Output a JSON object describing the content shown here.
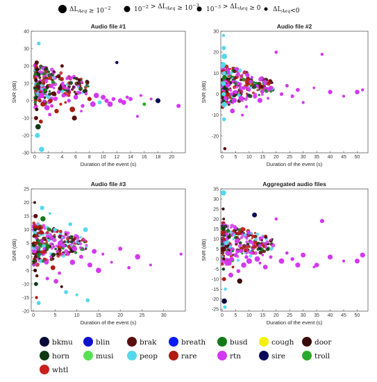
{
  "size_legend": [
    {
      "label": "ΔL_Aeq ≥ 10^-2",
      "marker_radius_px": 6
    },
    {
      "label": "10^-2 > ΔL_Aeq ≥ 10^-3",
      "marker_radius_px": 4.5
    },
    {
      "label": "10^-3 > ΔL_Aeq ≥ 0",
      "marker_radius_px": 3.5
    },
    {
      "label": "ΔL_Aeq <0",
      "marker_radius_px": 2.5
    }
  ],
  "categories": [
    {
      "name": "bkmu",
      "color": "#0a0a3a"
    },
    {
      "name": "blin",
      "color": "#1010d0"
    },
    {
      "name": "brak",
      "color": "#5a0f0f"
    },
    {
      "name": "breath",
      "color": "#0a1aff"
    },
    {
      "name": "busd",
      "color": "#127a18"
    },
    {
      "name": "cough",
      "color": "#f2f200"
    },
    {
      "name": "door",
      "color": "#3a0a0a"
    },
    {
      "name": "horn",
      "color": "#0f3a12"
    },
    {
      "name": "musi",
      "color": "#55e055"
    },
    {
      "name": "peop",
      "color": "#55d8ee"
    },
    {
      "name": "rare",
      "color": "#b01a10"
    },
    {
      "name": "rtn",
      "color": "#d438f0"
    },
    {
      "name": "sire",
      "color": "#0a0a5a"
    },
    {
      "name": "troll",
      "color": "#2aaa2a"
    },
    {
      "name": "whtl",
      "color": "#c8201a"
    }
  ],
  "chart_data": [
    {
      "type": "scatter",
      "title": "Audio file #1",
      "xlabel": "Duration of the event (s)",
      "ylabel": "SNR (dB)",
      "xlim": [
        -0.5,
        22
      ],
      "ylim": [
        -30,
        40
      ],
      "xticks": [
        0,
        2,
        4,
        6,
        8,
        10,
        12,
        14,
        16,
        18,
        20
      ],
      "yticks": [
        -30,
        -20,
        -10,
        0,
        10,
        20,
        30,
        40
      ],
      "points": [
        [
          0.3,
          22,
          "brak"
        ],
        [
          0.4,
          18,
          "door"
        ],
        [
          0.6,
          15,
          "horn"
        ],
        [
          0.5,
          8,
          "brak"
        ],
        [
          0.8,
          5,
          "rare"
        ],
        [
          0.3,
          -5,
          "door"
        ],
        [
          0.2,
          -10,
          "brak"
        ],
        [
          0.5,
          -15,
          "horn"
        ],
        [
          0.4,
          -20,
          "peop"
        ],
        [
          0.7,
          0,
          "rare"
        ],
        [
          1.0,
          3,
          "rtn"
        ],
        [
          1.2,
          -2,
          "rare"
        ],
        [
          1.5,
          6,
          "busd"
        ],
        [
          1.8,
          -4,
          "rtn"
        ],
        [
          2.0,
          2,
          "peop"
        ],
        [
          2.3,
          0,
          "rare"
        ],
        [
          2.5,
          -3,
          "rtn"
        ],
        [
          2.8,
          4,
          "brak"
        ],
        [
          3.0,
          1,
          "rtn"
        ],
        [
          3.2,
          -6,
          "rare"
        ],
        [
          3.5,
          5,
          "rtn"
        ],
        [
          3.8,
          -2,
          "whtl"
        ],
        [
          4.0,
          20,
          "brak"
        ],
        [
          4.2,
          3,
          "rtn"
        ],
        [
          4.5,
          -1,
          "rare"
        ],
        [
          4.8,
          7,
          "rtn"
        ],
        [
          5.0,
          0,
          "rtn"
        ],
        [
          5.5,
          -5,
          "rare"
        ],
        [
          6.0,
          2,
          "rtn"
        ],
        [
          6.5,
          12,
          "brak"
        ],
        [
          7.0,
          -3,
          "rtn"
        ],
        [
          7.5,
          4,
          "rtn"
        ],
        [
          8.0,
          1,
          "rare"
        ],
        [
          8.5,
          -2,
          "rtn"
        ],
        [
          9.0,
          3,
          "rtn"
        ],
        [
          9.5,
          -1,
          "peop"
        ],
        [
          10.0,
          2,
          "rtn"
        ],
        [
          10.5,
          0,
          "rtn"
        ],
        [
          11.0,
          -2,
          "rtn"
        ],
        [
          11.5,
          1,
          "rtn"
        ],
        [
          12.0,
          22,
          "sire"
        ],
        [
          12.5,
          0,
          "rtn"
        ],
        [
          13.0,
          -1,
          "rtn"
        ],
        [
          13.5,
          2,
          "rtn"
        ],
        [
          14.0,
          1,
          "rtn"
        ],
        [
          15.0,
          -9,
          "rtn"
        ],
        [
          15.5,
          3,
          "rtn"
        ],
        [
          16.0,
          -2,
          "troll"
        ],
        [
          17.0,
          1,
          "rtn"
        ],
        [
          18.0,
          0,
          "sire"
        ],
        [
          21.0,
          -3,
          "rtn"
        ],
        [
          0.6,
          33,
          "peop"
        ],
        [
          1.0,
          -28,
          "peop"
        ],
        [
          0.9,
          -12,
          "rare"
        ],
        [
          1.3,
          10,
          "rare"
        ],
        [
          2.2,
          -8,
          "rtn"
        ],
        [
          2.6,
          9,
          "rtn"
        ],
        [
          0.2,
          12,
          "door"
        ],
        [
          0.3,
          2,
          "horn"
        ],
        [
          5.8,
          -10,
          "brak"
        ],
        [
          6.8,
          -6,
          "rtn"
        ]
      ]
    },
    {
      "type": "scatter",
      "title": "Audio file #2",
      "xlabel": "Duration of the event (s)",
      "ylabel": "SNR (dB)",
      "xlim": [
        -0.5,
        54
      ],
      "ylim": [
        -28,
        30
      ],
      "xticks": [
        0,
        5,
        10,
        15,
        20,
        25,
        30,
        35,
        40,
        45,
        50
      ],
      "yticks": [
        -20,
        -10,
        0,
        10,
        20,
        30
      ],
      "points": [
        [
          0.5,
          28,
          "peop"
        ],
        [
          0.6,
          22,
          "peop"
        ],
        [
          0.8,
          18,
          "peop"
        ],
        [
          0.4,
          14,
          "peop"
        ],
        [
          0.7,
          10,
          "peop"
        ],
        [
          0.5,
          5,
          "peop"
        ],
        [
          0.6,
          0,
          "peop"
        ],
        [
          0.8,
          -5,
          "peop"
        ],
        [
          0.7,
          -12,
          "peop"
        ],
        [
          1.0,
          -26,
          "brak"
        ],
        [
          0.9,
          8,
          "busd"
        ],
        [
          1.2,
          3,
          "horn"
        ],
        [
          1.5,
          -2,
          "rtn"
        ],
        [
          2.0,
          4,
          "rtn"
        ],
        [
          2.5,
          -4,
          "rtn"
        ],
        [
          3.0,
          2,
          "rtn"
        ],
        [
          3.5,
          0,
          "rtn"
        ],
        [
          4.0,
          6,
          "rtn"
        ],
        [
          4.5,
          -3,
          "rtn"
        ],
        [
          5.0,
          1,
          "rtn"
        ],
        [
          6.0,
          5,
          "rtn"
        ],
        [
          7.0,
          -2,
          "rtn"
        ],
        [
          8.0,
          3,
          "rtn"
        ],
        [
          9.0,
          -6,
          "rtn"
        ],
        [
          10.0,
          2,
          "rtn"
        ],
        [
          11.0,
          8,
          "rtn"
        ],
        [
          12.0,
          -1,
          "rtn"
        ],
        [
          13.0,
          4,
          "rtn"
        ],
        [
          14.0,
          -3,
          "rtn"
        ],
        [
          15.0,
          1,
          "rtn"
        ],
        [
          16.0,
          6,
          "rtn"
        ],
        [
          17.0,
          -2,
          "rtn"
        ],
        [
          18.0,
          3,
          "rtn"
        ],
        [
          20.0,
          20,
          "rtn"
        ],
        [
          22.0,
          0,
          "rtn"
        ],
        [
          24.0,
          4,
          "rtn"
        ],
        [
          26.0,
          -1,
          "rtn"
        ],
        [
          28.0,
          2,
          "rtn"
        ],
        [
          30.0,
          -4,
          "rtn"
        ],
        [
          34.0,
          3,
          "rtn"
        ],
        [
          37.0,
          19,
          "rtn"
        ],
        [
          40.0,
          1,
          "rtn"
        ],
        [
          45.0,
          -1,
          "rtn"
        ],
        [
          50.0,
          1,
          "rtn"
        ],
        [
          52.0,
          2,
          "rtn"
        ],
        [
          2.2,
          10,
          "rtn"
        ],
        [
          3.8,
          -8,
          "rtn"
        ],
        [
          5.5,
          12,
          "rtn"
        ],
        [
          7.5,
          -10,
          "rtn"
        ],
        [
          9.5,
          9,
          "rtn"
        ]
      ]
    },
    {
      "type": "scatter",
      "title": "Audio file #3",
      "xlabel": "Duration of the event (s)",
      "ylabel": "SNR (dB)",
      "xlim": [
        -0.5,
        35
      ],
      "ylim": [
        -20,
        25
      ],
      "xticks": [
        0,
        5,
        10,
        15,
        20,
        25,
        30
      ],
      "yticks": [
        -20,
        -15,
        -10,
        -5,
        0,
        5,
        10,
        15,
        20,
        25
      ],
      "points": [
        [
          0.3,
          20,
          "door"
        ],
        [
          0.5,
          15,
          "brak"
        ],
        [
          0.4,
          10,
          "horn"
        ],
        [
          0.6,
          5,
          "rare"
        ],
        [
          0.5,
          0,
          "brak"
        ],
        [
          0.4,
          -5,
          "door"
        ],
        [
          0.6,
          -10,
          "horn"
        ],
        [
          0.7,
          -15,
          "rare"
        ],
        [
          1.0,
          12,
          "peop"
        ],
        [
          1.5,
          8,
          "peop"
        ],
        [
          2.0,
          18,
          "peop"
        ],
        [
          2.5,
          3,
          "rtn"
        ],
        [
          3.0,
          -2,
          "rtn"
        ],
        [
          3.5,
          6,
          "peop"
        ],
        [
          4.0,
          0,
          "rtn"
        ],
        [
          4.5,
          -4,
          "rare"
        ],
        [
          5.0,
          10,
          "peop"
        ],
        [
          5.5,
          2,
          "rtn"
        ],
        [
          6.0,
          -6,
          "rtn"
        ],
        [
          6.5,
          -11,
          "door"
        ],
        [
          7.0,
          4,
          "rtn"
        ],
        [
          7.5,
          -13,
          "peop"
        ],
        [
          8.0,
          1,
          "rtn"
        ],
        [
          8.5,
          12,
          "peop"
        ],
        [
          9.0,
          -2,
          "rtn"
        ],
        [
          9.5,
          3,
          "rtn"
        ],
        [
          10.0,
          -14,
          "peop"
        ],
        [
          11.0,
          0,
          "rtn"
        ],
        [
          12.0,
          10,
          "peop"
        ],
        [
          13.0,
          -3,
          "rtn"
        ],
        [
          14.0,
          2,
          "rtn"
        ],
        [
          15.0,
          -5,
          "rtn"
        ],
        [
          16.0,
          1,
          "rtn"
        ],
        [
          18.0,
          -2,
          "rtn"
        ],
        [
          20.0,
          3,
          "rtn"
        ],
        [
          22.0,
          -4,
          "rtn"
        ],
        [
          24.0,
          0,
          "rtn"
        ],
        [
          27.0,
          -3,
          "rtn"
        ],
        [
          34.0,
          1,
          "rtn"
        ],
        [
          1.2,
          -17,
          "peop"
        ],
        [
          2.2,
          14,
          "busd"
        ],
        [
          3.2,
          -8,
          "rtn"
        ],
        [
          4.2,
          7,
          "rtn"
        ],
        [
          5.2,
          -9,
          "rtn"
        ],
        [
          6.2,
          5,
          "rtn"
        ],
        [
          0.8,
          -7,
          "brak"
        ],
        [
          1.8,
          9,
          "rare"
        ],
        [
          2.8,
          -1,
          "whtl"
        ],
        [
          3.8,
          16,
          "peop"
        ],
        [
          12.5,
          -16,
          "peop"
        ]
      ]
    },
    {
      "type": "scatter",
      "title": "Aggregated audio files",
      "xlabel": "Duration of the event (s)",
      "ylabel": "SNR (dB)",
      "xlim": [
        -0.5,
        54
      ],
      "ylim": [
        -26,
        35
      ],
      "xticks": [
        0,
        5,
        10,
        15,
        20,
        25,
        30,
        35,
        40,
        45,
        50
      ],
      "yticks": [
        -25,
        -20,
        -15,
        -10,
        -5,
        0,
        5,
        10,
        15,
        20,
        25,
        30,
        35
      ],
      "points": [
        [
          0.5,
          33,
          "peop"
        ],
        [
          0.4,
          25,
          "door"
        ],
        [
          0.6,
          20,
          "brak"
        ],
        [
          0.5,
          15,
          "horn"
        ],
        [
          0.7,
          10,
          "rare"
        ],
        [
          0.4,
          5,
          "brak"
        ],
        [
          0.6,
          0,
          "door"
        ],
        [
          0.5,
          -5,
          "horn"
        ],
        [
          0.7,
          -10,
          "rare"
        ],
        [
          0.8,
          -21,
          "bkmu"
        ],
        [
          1.0,
          -24,
          "peop"
        ],
        [
          1.5,
          8,
          "peop"
        ],
        [
          2.0,
          3,
          "rtn"
        ],
        [
          2.5,
          -2,
          "rtn"
        ],
        [
          3.0,
          6,
          "peop"
        ],
        [
          3.5,
          0,
          "rtn"
        ],
        [
          4.0,
          -4,
          "rare"
        ],
        [
          4.5,
          12,
          "peop"
        ],
        [
          5.0,
          2,
          "rtn"
        ],
        [
          6.0,
          -6,
          "rtn"
        ],
        [
          7.0,
          4,
          "rtn"
        ],
        [
          8.0,
          -3,
          "rtn"
        ],
        [
          9.0,
          1,
          "rtn"
        ],
        [
          10.0,
          -1,
          "rtn"
        ],
        [
          11.0,
          3,
          "rtn"
        ],
        [
          12.0,
          22,
          "sire"
        ],
        [
          13.0,
          0,
          "rtn"
        ],
        [
          14.0,
          -2,
          "rtn"
        ],
        [
          15.0,
          2,
          "rtn"
        ],
        [
          16.0,
          -4,
          "rtn"
        ],
        [
          18.0,
          1,
          "rtn"
        ],
        [
          20.0,
          20,
          "rtn"
        ],
        [
          22.0,
          -1,
          "rtn"
        ],
        [
          24.0,
          3,
          "rtn"
        ],
        [
          26.0,
          0,
          "rtn"
        ],
        [
          28.0,
          -3,
          "rtn"
        ],
        [
          30.0,
          2,
          "rtn"
        ],
        [
          34.0,
          -4,
          "rtn"
        ],
        [
          37.0,
          19,
          "rtn"
        ],
        [
          40.0,
          1,
          "rtn"
        ],
        [
          45.0,
          -1,
          "rtn"
        ],
        [
          50.0,
          -1,
          "rtn"
        ],
        [
          52.0,
          2,
          "rtn"
        ],
        [
          1.2,
          -15,
          "peop"
        ],
        [
          2.2,
          14,
          "busd"
        ],
        [
          3.2,
          -8,
          "rtn"
        ],
        [
          5.5,
          9,
          "rtn"
        ],
        [
          6.5,
          -11,
          "door"
        ],
        [
          8.5,
          12,
          "peop"
        ],
        [
          35.0,
          -3,
          "rtn"
        ]
      ]
    }
  ]
}
